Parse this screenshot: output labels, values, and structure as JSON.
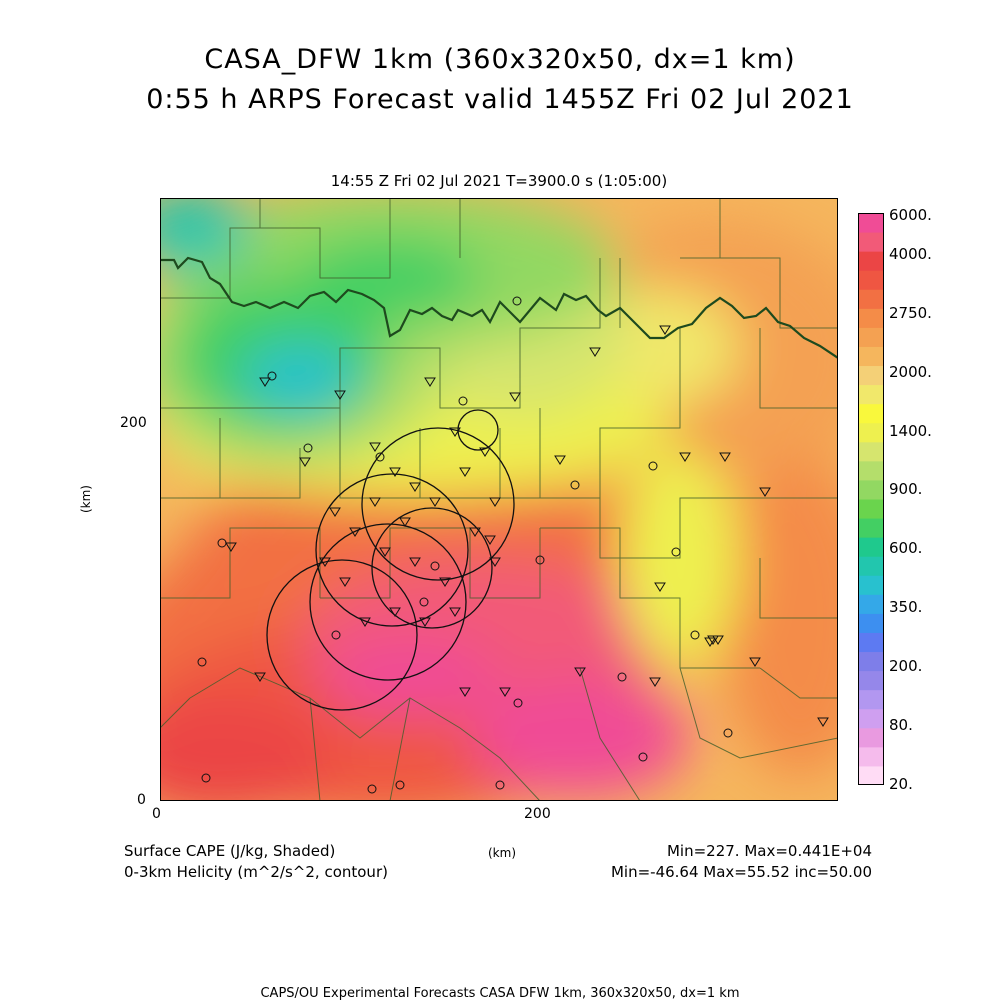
{
  "header": {
    "title_line1": "CASA_DFW 1km (360x320x50, dx=1 km)",
    "title_line2": "0:55 h ARPS Forecast valid 1455Z Fri 02 Jul 2021",
    "time_info": "14:55 Z Fri 02 Jul 2021    T=3900.0 s (1:05:00)"
  },
  "map": {
    "x_axis": {
      "label": "(km)",
      "ticks": [
        "0",
        "200"
      ]
    },
    "y_axis": {
      "label": "(km)",
      "ticks": [
        "0",
        "200"
      ]
    },
    "domain_km": {
      "x": [
        0,
        360
      ],
      "y": [
        0,
        320
      ]
    },
    "shaded_field": "Surface CAPE",
    "contour_field": "0-3km Helicity"
  },
  "colorbar": {
    "labels": [
      "6000.",
      "4000.",
      "2750.",
      "2000.",
      "1400.",
      "900.",
      "600.",
      "350.",
      "200.",
      "80.",
      "20."
    ],
    "colors": [
      "#ffdcf5",
      "#f5bbec",
      "#e99ae0",
      "#cf9ff0",
      "#b297f0",
      "#9587ea",
      "#7e7ee9",
      "#5d7af2",
      "#3d8ff0",
      "#34a8e8",
      "#28c1cf",
      "#22c6ae",
      "#1fc98d",
      "#43cf63",
      "#6ad44d",
      "#92d862",
      "#b4de6b",
      "#d6e56e",
      "#eef04f",
      "#f9f83c",
      "#f1e86b",
      "#f4d077",
      "#f5b65d",
      "#f4a152",
      "#f48c48",
      "#f27043",
      "#ef5642",
      "#eb4545",
      "#f25a78",
      "#f04c96"
    ]
  },
  "footer": {
    "left_line1": "Surface CAPE (J/kg, Shaded)",
    "left_line2": "0-3km Helicity (m^2/s^2, contour)",
    "center": "(km)",
    "right_line1": "Min=227. Max=0.441E+04",
    "right_line2": "Min=-46.64 Max=55.52 inc=50.00",
    "credits": "CAPS/OU Experimental Forecasts CASA DFW 1km, 360x320x50, dx=1 km"
  }
}
